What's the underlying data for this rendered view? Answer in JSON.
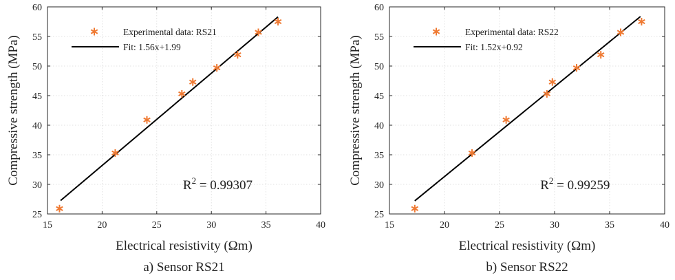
{
  "colors": {
    "marker": "#ef7a33",
    "fit": "#000000",
    "grid": "#d9d9d9",
    "axis": "#262626"
  },
  "chart_data": [
    {
      "type": "scatter",
      "caption": "a) Sensor RS21",
      "xlabel": "Electrical resistivity (Ωm)",
      "ylabel": "Compressive strength (MPa)",
      "xlim": [
        15,
        40
      ],
      "ylim": [
        25,
        60
      ],
      "xticks": [
        "15",
        "20",
        "25",
        "30",
        "35",
        "40"
      ],
      "yticks": [
        "25",
        "30",
        "35",
        "40",
        "45",
        "50",
        "55",
        "60"
      ],
      "grid": true,
      "legend_position": "top-left",
      "series": [
        {
          "name": "Experimental data: RS21",
          "kind": "points",
          "x": [
            16.1,
            21.2,
            24.1,
            27.3,
            28.3,
            30.5,
            32.4,
            34.3,
            36.1
          ],
          "y": [
            25.9,
            35.3,
            40.9,
            45.3,
            47.3,
            49.7,
            51.9,
            55.7,
            57.5
          ]
        },
        {
          "name": "Fit: 1.56x+1.99",
          "kind": "line",
          "slope": 1.56,
          "intercept": 1.99,
          "x": [
            16.2,
            36.1
          ]
        }
      ],
      "annotation": {
        "base": "R",
        "sup": "2",
        "text": " = 0.99307",
        "x": 27.4,
        "y": 29.2
      }
    },
    {
      "type": "scatter",
      "caption": "b) Sensor RS22",
      "xlabel": "Electrical resistivity (Ωm)",
      "ylabel": "Compressive strength (MPa)",
      "xlim": [
        15,
        40
      ],
      "ylim": [
        25,
        60
      ],
      "xticks": [
        "15",
        "20",
        "25",
        "30",
        "35",
        "40"
      ],
      "yticks": [
        "25",
        "30",
        "35",
        "40",
        "45",
        "50",
        "55",
        "60"
      ],
      "grid": true,
      "legend_position": "top-left",
      "series": [
        {
          "name": "Experimental data: RS22",
          "kind": "points",
          "x": [
            17.3,
            22.5,
            25.6,
            29.3,
            29.8,
            32.0,
            34.2,
            36.0,
            37.9
          ],
          "y": [
            25.9,
            35.3,
            40.9,
            45.3,
            47.3,
            49.7,
            51.9,
            55.7,
            57.5
          ]
        },
        {
          "name": "Fit: 1.52x+0.92",
          "kind": "line",
          "slope": 1.52,
          "intercept": 0.92,
          "x": [
            17.3,
            37.8
          ]
        }
      ],
      "annotation": {
        "base": "R",
        "sup": "2",
        "text": " = 0.99259",
        "x": 28.7,
        "y": 29.2
      }
    }
  ]
}
